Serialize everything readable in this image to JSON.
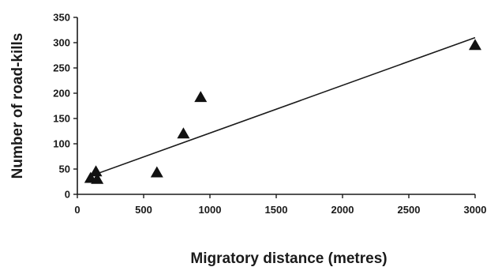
{
  "chart_data": {
    "type": "scatter",
    "title": "",
    "xlabel": "Migratory distance (metres)",
    "ylabel": "Number of road-kills",
    "xlim": [
      0,
      3000
    ],
    "ylim": [
      0,
      350
    ],
    "xticks": [
      0,
      500,
      1000,
      1500,
      2000,
      2500,
      3000
    ],
    "yticks": [
      0,
      50,
      100,
      150,
      200,
      250,
      300,
      350
    ],
    "grid": false,
    "legend": "none",
    "marker": "triangle",
    "colors": {
      "marker": "#111111",
      "line": "#1a1a1a"
    },
    "series": [
      {
        "points": [
          {
            "x": 100,
            "y": 32
          },
          {
            "x": 140,
            "y": 45
          },
          {
            "x": 150,
            "y": 30
          },
          {
            "x": 600,
            "y": 43
          },
          {
            "x": 800,
            "y": 120
          },
          {
            "x": 930,
            "y": 192
          },
          {
            "x": 3000,
            "y": 295
          }
        ]
      }
    ],
    "trendline": {
      "type": "linear",
      "x": [
        140,
        3000
      ],
      "y": [
        40,
        310
      ]
    }
  }
}
